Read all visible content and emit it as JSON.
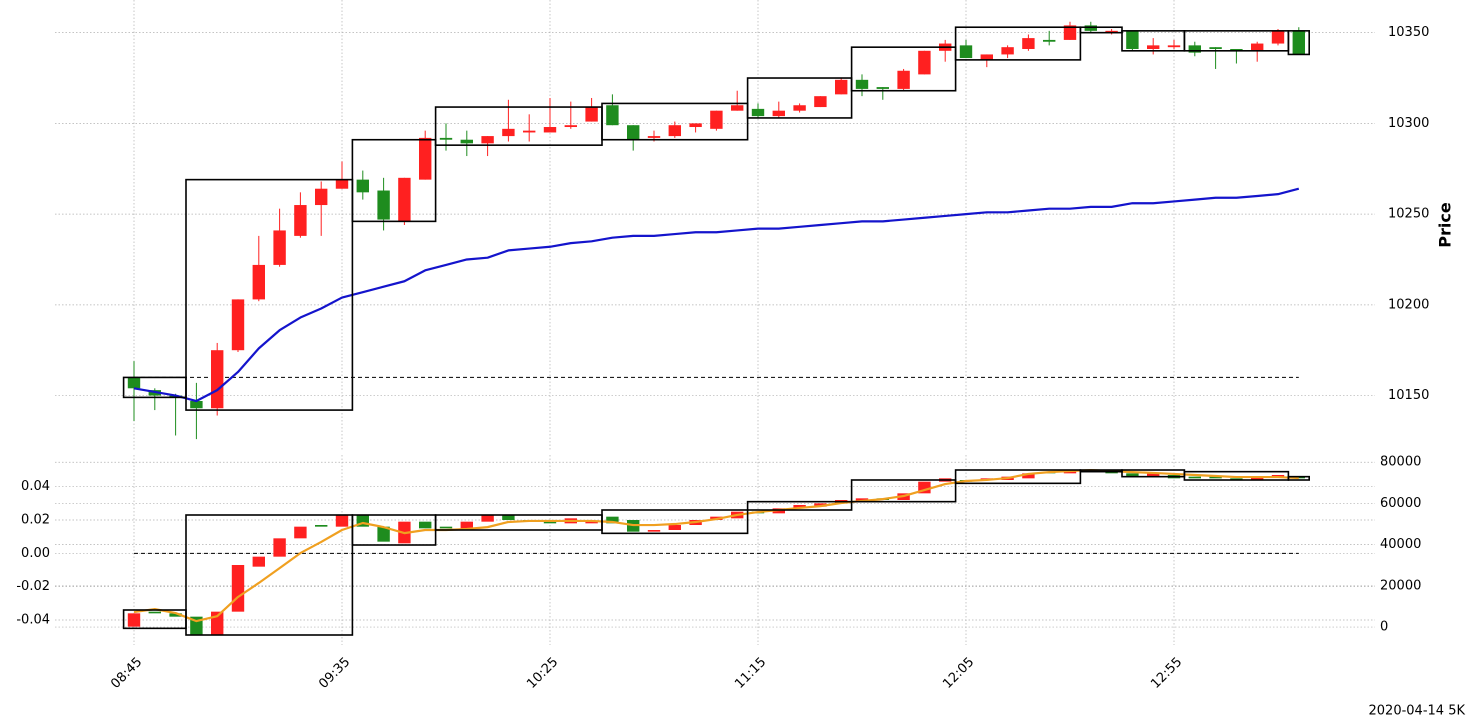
{
  "chart_data": [
    {
      "type": "candlestick",
      "y_label": "Price",
      "y_axis_side": "right",
      "grid": true,
      "up_color": "#ff2020",
      "down_color": "#1e8c1e",
      "categories": [
        "08:45",
        null,
        null,
        null,
        null,
        null,
        null,
        null,
        null,
        null,
        "09:35",
        null,
        null,
        null,
        null,
        null,
        null,
        null,
        null,
        null,
        "10:25",
        null,
        null,
        null,
        null,
        null,
        null,
        null,
        null,
        null,
        "11:15",
        null,
        null,
        null,
        null,
        null,
        null,
        null,
        null,
        null,
        "12:05",
        null,
        null,
        null,
        null,
        null,
        null,
        null,
        null,
        null,
        "12:55",
        null,
        null,
        null,
        null,
        null,
        null
      ],
      "open": [
        10160,
        10153,
        10150,
        10147,
        10143,
        10175,
        10203,
        10222,
        10238,
        10255,
        10264,
        10269,
        10263,
        10246,
        10269,
        10292,
        10291,
        10289,
        10293,
        10295,
        10295,
        10298,
        10301,
        10310,
        10299,
        10292,
        10293,
        10298,
        10297,
        10307,
        10308,
        10304,
        10307,
        10309,
        10316,
        10324,
        10320,
        10319,
        10327,
        10340,
        10343,
        10335,
        10338,
        10341,
        10346,
        10346,
        10354,
        10350,
        10351,
        10341,
        10342,
        10343,
        10342,
        10341,
        10340,
        10344,
        10351
      ],
      "high": [
        10169,
        10154,
        10151,
        10157,
        10179,
        10203,
        10238,
        10253,
        10262,
        10268,
        10279,
        10274,
        10270,
        10270,
        10296,
        10300,
        10296,
        10293,
        10313,
        10305,
        10314,
        10312,
        10314,
        10316,
        10299,
        10296,
        10301,
        10300,
        10307,
        10318,
        10311,
        10312,
        10311,
        10315,
        10325,
        10327,
        10320,
        10330,
        10340,
        10346,
        10346,
        10338,
        10343,
        10349,
        10351,
        10356,
        10356,
        10352,
        10351,
        10347,
        10346,
        10345,
        10342,
        10341,
        10345,
        10352,
        10353
      ],
      "low": [
        10136,
        10142,
        10128,
        10126,
        10139,
        10174,
        10202,
        10221,
        10237,
        10238,
        10264,
        10258,
        10241,
        10244,
        10269,
        10285,
        10282,
        10282,
        10290,
        10290,
        10295,
        10297,
        10301,
        10299,
        10285,
        10290,
        10292,
        10295,
        10296,
        10307,
        10303,
        10303,
        10306,
        10309,
        10316,
        10315,
        10313,
        10318,
        10327,
        10334,
        10336,
        10331,
        10336,
        10340,
        10343,
        10346,
        10350,
        10349,
        10340,
        10338,
        10341,
        10337,
        10330,
        10333,
        10334,
        10343,
        10338
      ],
      "close": [
        10154,
        10150,
        10149,
        10143,
        10175,
        10203,
        10222,
        10241,
        10255,
        10264,
        10269,
        10262,
        10247,
        10270,
        10292,
        10291,
        10289,
        10293,
        10297,
        10296,
        10298,
        10299,
        10309,
        10299,
        10291,
        10293,
        10299,
        10300,
        10307,
        10310,
        10304,
        10307,
        10310,
        10315,
        10324,
        10319,
        10319,
        10329,
        10340,
        10344,
        10336,
        10338,
        10342,
        10347,
        10345,
        10354,
        10351,
        10351,
        10341,
        10343,
        10343,
        10339,
        10341,
        10340,
        10344,
        10351,
        10338
      ],
      "series": [
        {
          "color": "#1414cc",
          "values": [
            10154,
            10152,
            10150,
            10147,
            10153,
            10163,
            10176,
            10186,
            10193,
            10198,
            10204,
            10207,
            10210,
            10213,
            10219,
            10222,
            10225,
            10226,
            10230,
            10231,
            10232,
            10234,
            10235,
            10237,
            10238,
            10238,
            10239,
            10240,
            10240,
            10241,
            10242,
            10242,
            10243,
            10244,
            10245,
            10246,
            10246,
            10247,
            10248,
            10249,
            10250,
            10251,
            10251,
            10252,
            10253,
            10253,
            10254,
            10254,
            10256,
            10256,
            10257,
            10258,
            10259,
            10259,
            10260,
            10261,
            10264
          ]
        }
      ],
      "reference_line": 10160,
      "boxes": {
        "start": [
          0,
          3,
          11,
          15,
          23,
          30,
          35,
          40,
          46,
          48,
          51,
          56
        ],
        "end": [
          2,
          10,
          14,
          22,
          29,
          34,
          39,
          45,
          47,
          50,
          55,
          56
        ],
        "high": [
          10160,
          10269,
          10291,
          10309,
          10311,
          10325,
          10342,
          10353,
          10353,
          10351,
          10351,
          10351
        ],
        "low": [
          10149,
          10142,
          10246,
          10288,
          10291,
          10303,
          10318,
          10335,
          10350,
          10340,
          10340,
          10338
        ]
      },
      "ylim": [
        10120,
        10368
      ],
      "yticks": [
        10150,
        10200,
        10250,
        10300,
        10350
      ]
    },
    {
      "type": "candlestick",
      "y_axis_side": "left",
      "grid": true,
      "up_color": "#ff2020",
      "down_color": "#1e8c1e",
      "open": [
        -0.044,
        -0.035,
        -0.036,
        -0.038,
        -0.049,
        -0.035,
        -0.008,
        -0.002,
        0.009,
        0.017,
        0.016,
        0.023,
        0.016,
        0.006,
        0.019,
        0.016,
        0.014,
        0.019,
        0.023,
        0.02,
        0.019,
        0.018,
        0.018,
        0.022,
        0.02,
        0.013,
        0.014,
        0.017,
        0.02,
        0.021,
        0.025,
        0.024,
        0.027,
        0.028,
        0.03,
        0.031,
        0.033,
        0.032,
        0.036,
        0.043,
        0.044,
        0.044,
        0.044,
        0.045,
        0.049,
        0.048,
        0.05,
        0.049,
        0.048,
        0.046,
        0.047,
        0.046,
        0.046,
        0.045,
        0.044,
        0.046,
        0.046
      ],
      "close": [
        -0.036,
        -0.036,
        -0.038,
        -0.049,
        -0.035,
        -0.007,
        -0.002,
        0.009,
        0.016,
        0.016,
        0.023,
        0.016,
        0.007,
        0.019,
        0.015,
        0.015,
        0.019,
        0.023,
        0.02,
        0.019,
        0.018,
        0.021,
        0.019,
        0.018,
        0.013,
        0.014,
        0.017,
        0.02,
        0.022,
        0.025,
        0.024,
        0.027,
        0.029,
        0.03,
        0.032,
        0.033,
        0.032,
        0.036,
        0.043,
        0.045,
        0.043,
        0.045,
        0.046,
        0.048,
        0.048,
        0.05,
        0.049,
        0.048,
        0.046,
        0.048,
        0.045,
        0.045,
        0.045,
        0.044,
        0.046,
        0.047,
        0.045
      ],
      "series": [
        {
          "color": "#f0a020",
          "axis": "y2",
          "values": [
            7300,
            8700,
            6800,
            2900,
            5300,
            14600,
            21400,
            28600,
            35900,
            41300,
            47100,
            50500,
            48500,
            45600,
            47100,
            47100,
            47600,
            48500,
            51000,
            51500,
            51500,
            51500,
            51500,
            51000,
            49500,
            49500,
            50000,
            51000,
            52400,
            54400,
            55800,
            56800,
            57800,
            58700,
            60200,
            61200,
            62100,
            63600,
            66500,
            69400,
            70900,
            71400,
            72300,
            74300,
            75200,
            75700,
            76200,
            75700,
            75200,
            74800,
            74300,
            73800,
            73300,
            72800,
            72800,
            72800,
            72300
          ]
        }
      ],
      "reference_line": 0,
      "boxes": {
        "start": [
          0,
          3,
          11,
          15,
          23,
          30,
          35,
          40,
          46,
          48,
          51,
          56
        ],
        "end": [
          2,
          10,
          14,
          22,
          29,
          34,
          39,
          45,
          47,
          50,
          55,
          56
        ],
        "high": [
          -0.034,
          0.023,
          0.023,
          0.023,
          0.026,
          0.031,
          0.044,
          0.05,
          0.05,
          0.05,
          0.049,
          0.046
        ],
        "low": [
          -0.045,
          -0.049,
          0.005,
          0.014,
          0.012,
          0.026,
          0.031,
          0.042,
          0.049,
          0.046,
          0.044,
          0.044
        ]
      },
      "ylim": [
        -0.055,
        0.059
      ],
      "yticks": [
        -0.04,
        -0.02,
        {
          "value": 0,
          "label": "0.00"
        },
        0.02,
        0.04
      ],
      "y2lim": [
        -8700,
        83500
      ],
      "y2ticks": [
        0,
        20000,
        40000,
        60000,
        80000
      ]
    }
  ],
  "footer": "2020-04-14 5K"
}
